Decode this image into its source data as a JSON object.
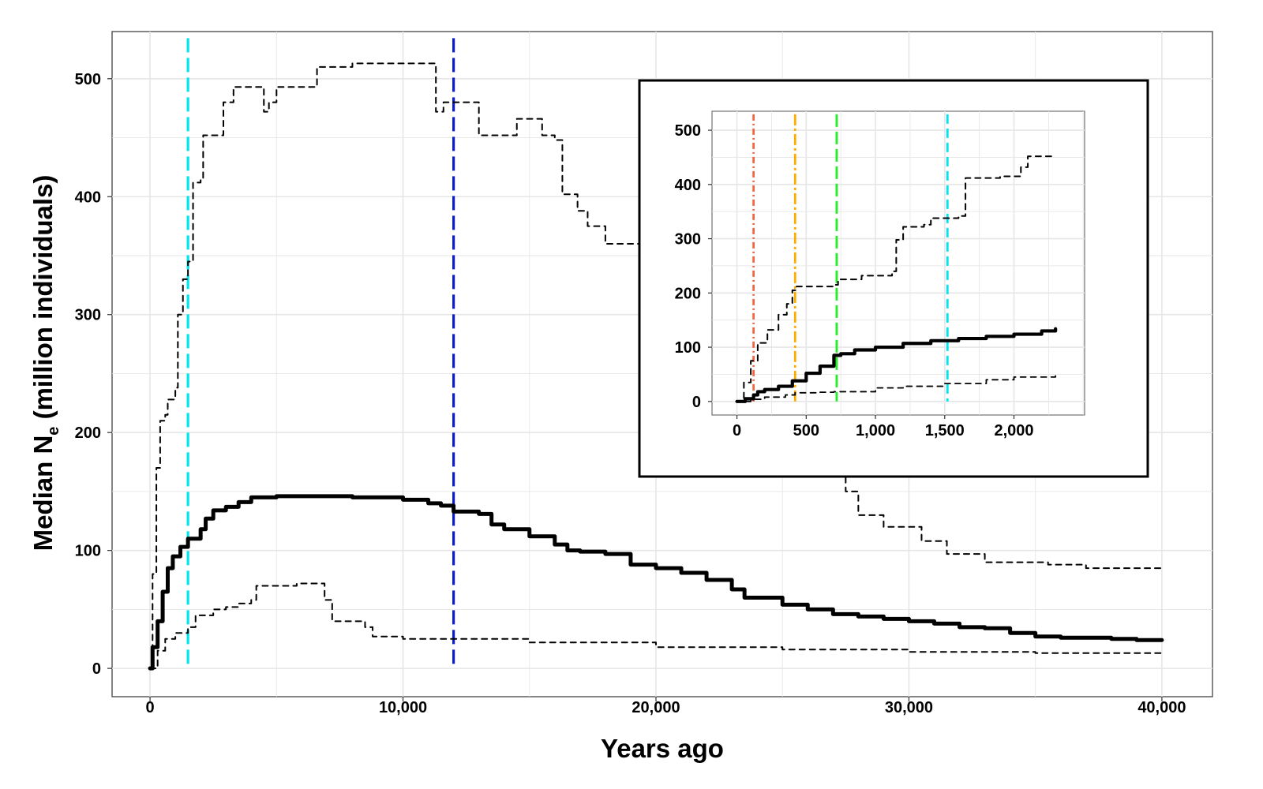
{
  "chart_data": [
    {
      "type": "line",
      "panel": "main",
      "xlabel": "Years ago",
      "ylabel": "Median N",
      "ylabel_subscript": "e",
      "ylabel_suffix": " (million individuals)",
      "xlim": [
        -1500,
        42000
      ],
      "ylim": [
        -24,
        540
      ],
      "x_ticks": [
        0,
        10000,
        20000,
        30000,
        40000
      ],
      "x_tick_labels": [
        "0",
        "10,000",
        "20,000",
        "30,000",
        "40,000"
      ],
      "y_ticks": [
        0,
        100,
        200,
        300,
        400,
        500
      ],
      "y_tick_labels": [
        "0",
        "100",
        "200",
        "300",
        "400",
        "500"
      ],
      "grid": true,
      "series": [
        {
          "style": "median",
          "color": "#000000",
          "points": [
            [
              0,
              0
            ],
            [
              100,
              18
            ],
            [
              300,
              40
            ],
            [
              500,
              65
            ],
            [
              700,
              85
            ],
            [
              900,
              95
            ],
            [
              1200,
              103
            ],
            [
              1500,
              110
            ],
            [
              2000,
              118
            ],
            [
              2200,
              127
            ],
            [
              2500,
              134
            ],
            [
              3000,
              137
            ],
            [
              3500,
              141
            ],
            [
              4000,
              145
            ],
            [
              5000,
              146
            ],
            [
              6000,
              146
            ],
            [
              7000,
              146
            ],
            [
              8000,
              145
            ],
            [
              9000,
              145
            ],
            [
              10000,
              143
            ],
            [
              11000,
              140
            ],
            [
              11500,
              138
            ],
            [
              12000,
              133
            ],
            [
              13000,
              131
            ],
            [
              13500,
              122
            ],
            [
              14000,
              118
            ],
            [
              15000,
              112
            ],
            [
              16000,
              105
            ],
            [
              16500,
              100
            ],
            [
              17000,
              99
            ],
            [
              18000,
              97
            ],
            [
              19000,
              88
            ],
            [
              20000,
              85
            ],
            [
              21000,
              81
            ],
            [
              22000,
              75
            ],
            [
              23000,
              67
            ],
            [
              23500,
              60
            ],
            [
              25000,
              54
            ],
            [
              26000,
              50
            ],
            [
              27000,
              46
            ],
            [
              28000,
              44
            ],
            [
              29000,
              42
            ],
            [
              30000,
              40
            ],
            [
              31000,
              38
            ],
            [
              32000,
              35
            ],
            [
              33000,
              34
            ],
            [
              34000,
              30
            ],
            [
              35000,
              27
            ],
            [
              36000,
              26
            ],
            [
              37000,
              26
            ],
            [
              38000,
              25
            ],
            [
              39000,
              24
            ],
            [
              40000,
              24
            ]
          ]
        },
        {
          "style": "upper",
          "color": "#000000",
          "points": [
            [
              0,
              0
            ],
            [
              100,
              80
            ],
            [
              250,
              170
            ],
            [
              400,
              210
            ],
            [
              600,
              215
            ],
            [
              700,
              228
            ],
            [
              1000,
              238
            ],
            [
              1100,
              300
            ],
            [
              1300,
              330
            ],
            [
              1500,
              345
            ],
            [
              1700,
              412
            ],
            [
              2000,
              414
            ],
            [
              2100,
              452
            ],
            [
              2900,
              480
            ],
            [
              3300,
              493
            ],
            [
              4100,
              493
            ],
            [
              4500,
              472
            ],
            [
              4700,
              480
            ],
            [
              5000,
              493
            ],
            [
              6600,
              510
            ],
            [
              8000,
              513
            ],
            [
              11200,
              513
            ],
            [
              11300,
              472
            ],
            [
              11600,
              480
            ],
            [
              13000,
              452
            ],
            [
              14000,
              452
            ],
            [
              14500,
              466
            ],
            [
              15500,
              452
            ],
            [
              16000,
              448
            ],
            [
              16300,
              402
            ],
            [
              16900,
              388
            ],
            [
              17300,
              375
            ],
            [
              18000,
              360
            ],
            [
              21000,
              360
            ],
            [
              22000,
              340
            ],
            [
              24000,
              300
            ],
            [
              26000,
              260
            ],
            [
              27000,
              180
            ],
            [
              27500,
              150
            ],
            [
              28000,
              130
            ],
            [
              29000,
              120
            ],
            [
              30500,
              108
            ],
            [
              31500,
              97
            ],
            [
              33000,
              90
            ],
            [
              35500,
              88
            ],
            [
              37000,
              85
            ],
            [
              40000,
              85
            ]
          ]
        },
        {
          "style": "lower",
          "color": "#000000",
          "points": [
            [
              0,
              0
            ],
            [
              300,
              15
            ],
            [
              600,
              25
            ],
            [
              1000,
              30
            ],
            [
              1500,
              35
            ],
            [
              1800,
              45
            ],
            [
              2500,
              50
            ],
            [
              3000,
              52
            ],
            [
              3500,
              55
            ],
            [
              4000,
              58
            ],
            [
              4200,
              70
            ],
            [
              5000,
              70
            ],
            [
              5800,
              72
            ],
            [
              6500,
              72
            ],
            [
              6900,
              58
            ],
            [
              7200,
              40
            ],
            [
              8500,
              35
            ],
            [
              8800,
              27
            ],
            [
              10000,
              25
            ],
            [
              15000,
              22
            ],
            [
              20000,
              18
            ],
            [
              25000,
              16
            ],
            [
              30000,
              14
            ],
            [
              35000,
              13
            ],
            [
              40000,
              12
            ]
          ]
        }
      ],
      "vlines": [
        {
          "x": 1500,
          "color": "#00e5ee"
        },
        {
          "x": 12000,
          "color": "#0b1ccc"
        }
      ]
    },
    {
      "type": "line",
      "panel": "inset",
      "xlim": [
        -180,
        2510
      ],
      "ylim": [
        -25,
        535
      ],
      "x_ticks": [
        0,
        500,
        1000,
        1500,
        2000
      ],
      "x_tick_labels": [
        "0",
        "500",
        "1,000",
        "1,500",
        "2,000"
      ],
      "y_ticks": [
        0,
        100,
        200,
        300,
        400,
        500
      ],
      "y_tick_labels": [
        "0",
        "100",
        "200",
        "300",
        "400",
        "500"
      ],
      "grid": true,
      "series": [
        {
          "style": "median",
          "color": "#000000",
          "points": [
            [
              0,
              0
            ],
            [
              60,
              5
            ],
            [
              120,
              12
            ],
            [
              150,
              18
            ],
            [
              200,
              22
            ],
            [
              300,
              28
            ],
            [
              400,
              38
            ],
            [
              500,
              52
            ],
            [
              600,
              65
            ],
            [
              700,
              85
            ],
            [
              750,
              88
            ],
            [
              850,
              95
            ],
            [
              1000,
              100
            ],
            [
              1200,
              107
            ],
            [
              1400,
              112
            ],
            [
              1600,
              116
            ],
            [
              1800,
              120
            ],
            [
              2000,
              124
            ],
            [
              2200,
              130
            ],
            [
              2300,
              134
            ]
          ]
        },
        {
          "style": "upper",
          "color": "#000000",
          "points": [
            [
              0,
              0
            ],
            [
              50,
              35
            ],
            [
              100,
              75
            ],
            [
              150,
              108
            ],
            [
              220,
              132
            ],
            [
              300,
              160
            ],
            [
              360,
              180
            ],
            [
              400,
              205
            ],
            [
              430,
              212
            ],
            [
              700,
              215
            ],
            [
              730,
              225
            ],
            [
              900,
              232
            ],
            [
              1120,
              240
            ],
            [
              1150,
              298
            ],
            [
              1200,
              322
            ],
            [
              1350,
              326
            ],
            [
              1400,
              338
            ],
            [
              1600,
              342
            ],
            [
              1650,
              412
            ],
            [
              1900,
              415
            ],
            [
              2000,
              415
            ],
            [
              2050,
              432
            ],
            [
              2100,
              452
            ],
            [
              2300,
              452
            ]
          ]
        },
        {
          "style": "lower",
          "color": "#000000",
          "points": [
            [
              0,
              0
            ],
            [
              100,
              4
            ],
            [
              200,
              8
            ],
            [
              350,
              12
            ],
            [
              420,
              16
            ],
            [
              600,
              17
            ],
            [
              700,
              18
            ],
            [
              1000,
              25
            ],
            [
              1200,
              28
            ],
            [
              1500,
              33
            ],
            [
              1800,
              40
            ],
            [
              2000,
              45
            ],
            [
              2300,
              48
            ]
          ]
        }
      ],
      "vlines": [
        {
          "x": 120,
          "color": "#ee6644",
          "dash": "dot-dash"
        },
        {
          "x": 420,
          "color": "#ffaa00",
          "dash": "long-dot-dash"
        },
        {
          "x": 720,
          "color": "#22ee22",
          "dash": "long-dash"
        },
        {
          "x": 1520,
          "color": "#00e5ee",
          "dash": "dash"
        }
      ]
    }
  ]
}
